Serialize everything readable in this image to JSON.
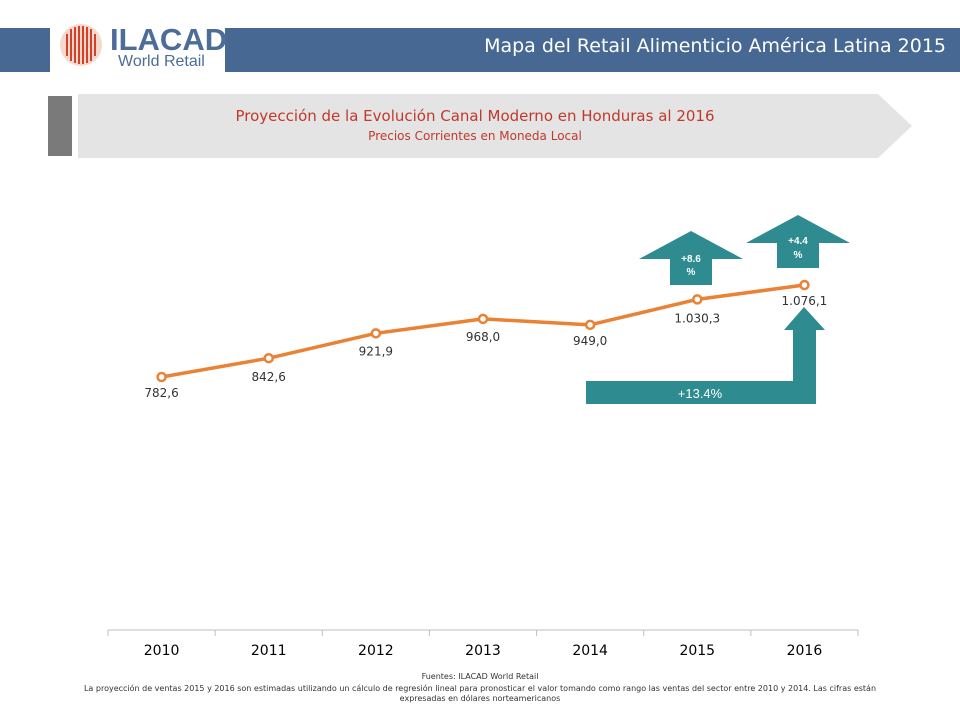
{
  "header": {
    "logo_main": "ILACAD",
    "logo_sub": "World Retail",
    "title": "Mapa del Retail Alimenticio América Latina 2015"
  },
  "banner": {
    "title": "Proyección de la Evolución Canal Moderno en Honduras al 2016",
    "subtitle": "Precios Corrientes en Moneda Local"
  },
  "chart_data": {
    "type": "line",
    "categories": [
      "2010",
      "2011",
      "2012",
      "2013",
      "2014",
      "2015",
      "2016"
    ],
    "values": [
      782.6,
      842.6,
      921.9,
      968.0,
      949.0,
      1030.3,
      1076.1
    ],
    "data_labels": [
      "782,6",
      "842,6",
      "921,9",
      "968,0",
      "949,0",
      "1.030,3",
      "1.076,1"
    ],
    "title": "",
    "xlabel": "",
    "ylabel": "",
    "line_color": "#e98234",
    "annotations": [
      {
        "label": "+8.6 %",
        "from": "2014",
        "to": "2015"
      },
      {
        "label": "+4.4 %",
        "from": "2015",
        "to": "2016"
      },
      {
        "label": "+13.4%",
        "from": "2014",
        "to": "2016"
      }
    ],
    "annotation_color": "#2e8b8f"
  },
  "footer": {
    "source": "Fuentes: ILACAD World Retail",
    "note": "La proyección de ventas 2015 y 2016 son estimadas utilizando un cálculo de regresión lineal para pronosticar el valor tomando como rango las ventas del sector entre 2010 y 2014. Las cifras están expresadas en dólares norteamericanos"
  },
  "colors": {
    "header_bg": "#466892",
    "banner_text": "#c0392b"
  }
}
